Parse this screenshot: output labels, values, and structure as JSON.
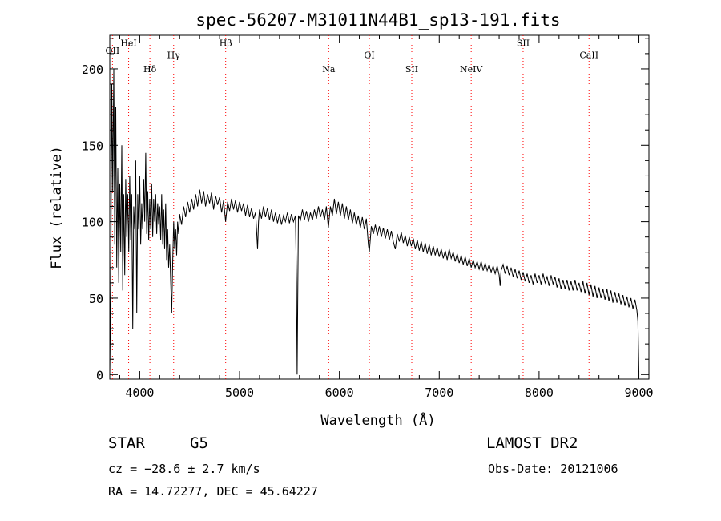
{
  "chart_data": {
    "type": "line",
    "title": "spec-56207-M31011N44B1_sp13-191.fits",
    "xlabel": "Wavelength (Å)",
    "ylabel": "Flux (relative)",
    "xlim": [
      3700,
      9100
    ],
    "ylim": [
      -3,
      222
    ],
    "xticks": [
      4000,
      5000,
      6000,
      7000,
      8000,
      9000
    ],
    "yticks": [
      0,
      50,
      100,
      150,
      200
    ],
    "grid": false,
    "line_color": "#000000",
    "marker_color": "#ff0000",
    "spectral_lines": [
      {
        "label": "OII",
        "x": 3727,
        "y_label": 210
      },
      {
        "label": "HeI",
        "x": 3889,
        "y_label": 215
      },
      {
        "label": "Hδ",
        "x": 4102,
        "y_label": 198
      },
      {
        "label": "Hγ",
        "x": 4340,
        "y_label": 207
      },
      {
        "label": "Hβ",
        "x": 4861,
        "y_label": 215
      },
      {
        "label": "Na",
        "x": 5893,
        "y_label": 198
      },
      {
        "label": "OI",
        "x": 6300,
        "y_label": 207
      },
      {
        "label": "SII",
        "x": 6725,
        "y_label": 198
      },
      {
        "label": "NeIV",
        "x": 7320,
        "y_label": 198
      },
      {
        "label": "SII",
        "x": 7840,
        "y_label": 215
      },
      {
        "label": "CaII",
        "x": 8500,
        "y_label": 207
      }
    ],
    "series": [
      {
        "values": [
          [
            3700,
            0
          ],
          [
            3710,
            55
          ],
          [
            3720,
            190
          ],
          [
            3730,
            120
          ],
          [
            3740,
            200
          ],
          [
            3750,
            85
          ],
          [
            3760,
            175
          ],
          [
            3770,
            70
          ],
          [
            3780,
            135
          ],
          [
            3790,
            60
          ],
          [
            3800,
            125
          ],
          [
            3810,
            80
          ],
          [
            3820,
            150
          ],
          [
            3830,
            55
          ],
          [
            3840,
            118
          ],
          [
            3850,
            65
          ],
          [
            3860,
            128
          ],
          [
            3870,
            90
          ],
          [
            3880,
            118
          ],
          [
            3890,
            80
          ],
          [
            3900,
            130
          ],
          [
            3910,
            88
          ],
          [
            3920,
            118
          ],
          [
            3930,
            30
          ],
          [
            3940,
            110
          ],
          [
            3950,
            95
          ],
          [
            3960,
            140
          ],
          [
            3970,
            40
          ],
          [
            3980,
            118
          ],
          [
            3990,
            95
          ],
          [
            4000,
            130
          ],
          [
            4010,
            85
          ],
          [
            4020,
            112
          ],
          [
            4030,
            95
          ],
          [
            4040,
            128
          ],
          [
            4050,
            100
          ],
          [
            4060,
            145
          ],
          [
            4070,
            92
          ],
          [
            4080,
            120
          ],
          [
            4090,
            88
          ],
          [
            4100,
            115
          ],
          [
            4110,
            95
          ],
          [
            4120,
            125
          ],
          [
            4130,
            90
          ],
          [
            4140,
            115
          ],
          [
            4150,
            100
          ],
          [
            4160,
            118
          ],
          [
            4170,
            92
          ],
          [
            4180,
            112
          ],
          [
            4190,
            98
          ],
          [
            4200,
            110
          ],
          [
            4210,
            88
          ],
          [
            4220,
            118
          ],
          [
            4230,
            85
          ],
          [
            4240,
            108
          ],
          [
            4250,
            82
          ],
          [
            4260,
            112
          ],
          [
            4270,
            75
          ],
          [
            4280,
            95
          ],
          [
            4290,
            70
          ],
          [
            4300,
            85
          ],
          [
            4310,
            62
          ],
          [
            4320,
            40
          ],
          [
            4330,
            72
          ],
          [
            4340,
            100
          ],
          [
            4350,
            82
          ],
          [
            4360,
            95
          ],
          [
            4370,
            78
          ],
          [
            4380,
            100
          ],
          [
            4390,
            92
          ],
          [
            4400,
            105
          ],
          [
            4420,
            98
          ],
          [
            4440,
            110
          ],
          [
            4460,
            103
          ],
          [
            4480,
            113
          ],
          [
            4500,
            106
          ],
          [
            4520,
            115
          ],
          [
            4540,
            108
          ],
          [
            4560,
            118
          ],
          [
            4580,
            110
          ],
          [
            4600,
            121
          ],
          [
            4620,
            112
          ],
          [
            4640,
            120
          ],
          [
            4660,
            110
          ],
          [
            4680,
            118
          ],
          [
            4700,
            112
          ],
          [
            4720,
            119
          ],
          [
            4740,
            108
          ],
          [
            4760,
            117
          ],
          [
            4780,
            111
          ],
          [
            4800,
            116
          ],
          [
            4820,
            106
          ],
          [
            4840,
            114
          ],
          [
            4860,
            100
          ],
          [
            4880,
            113
          ],
          [
            4900,
            107
          ],
          [
            4920,
            115
          ],
          [
            4940,
            108
          ],
          [
            4960,
            114
          ],
          [
            4980,
            106
          ],
          [
            5000,
            113
          ],
          [
            5020,
            107
          ],
          [
            5040,
            112
          ],
          [
            5060,
            104
          ],
          [
            5080,
            111
          ],
          [
            5100,
            103
          ],
          [
            5120,
            109
          ],
          [
            5140,
            102
          ],
          [
            5160,
            106
          ],
          [
            5170,
            95
          ],
          [
            5180,
            82
          ],
          [
            5190,
            100
          ],
          [
            5200,
            108
          ],
          [
            5220,
            102
          ],
          [
            5240,
            110
          ],
          [
            5260,
            103
          ],
          [
            5280,
            109
          ],
          [
            5300,
            101
          ],
          [
            5320,
            108
          ],
          [
            5340,
            100
          ],
          [
            5360,
            106
          ],
          [
            5380,
            99
          ],
          [
            5400,
            105
          ],
          [
            5420,
            98
          ],
          [
            5440,
            104
          ],
          [
            5460,
            100
          ],
          [
            5480,
            106
          ],
          [
            5500,
            99
          ],
          [
            5520,
            105
          ],
          [
            5540,
            100
          ],
          [
            5560,
            104
          ],
          [
            5570,
            60
          ],
          [
            5577,
            0
          ],
          [
            5584,
            60
          ],
          [
            5590,
            104
          ],
          [
            5610,
            101
          ],
          [
            5630,
            108
          ],
          [
            5650,
            101
          ],
          [
            5670,
            107
          ],
          [
            5690,
            100
          ],
          [
            5710,
            106
          ],
          [
            5730,
            101
          ],
          [
            5750,
            108
          ],
          [
            5770,
            102
          ],
          [
            5790,
            110
          ],
          [
            5810,
            103
          ],
          [
            5830,
            108
          ],
          [
            5850,
            101
          ],
          [
            5870,
            110
          ],
          [
            5890,
            96
          ],
          [
            5910,
            110
          ],
          [
            5930,
            104
          ],
          [
            5950,
            115
          ],
          [
            5970,
            105
          ],
          [
            5990,
            113
          ],
          [
            6010,
            104
          ],
          [
            6030,
            112
          ],
          [
            6050,
            102
          ],
          [
            6070,
            110
          ],
          [
            6090,
            101
          ],
          [
            6110,
            108
          ],
          [
            6130,
            99
          ],
          [
            6150,
            106
          ],
          [
            6170,
            98
          ],
          [
            6190,
            104
          ],
          [
            6210,
            96
          ],
          [
            6230,
            103
          ],
          [
            6250,
            95
          ],
          [
            6270,
            102
          ],
          [
            6290,
            85
          ],
          [
            6300,
            80
          ],
          [
            6320,
            97
          ],
          [
            6340,
            92
          ],
          [
            6360,
            98
          ],
          [
            6380,
            91
          ],
          [
            6400,
            97
          ],
          [
            6420,
            90
          ],
          [
            6440,
            96
          ],
          [
            6460,
            89
          ],
          [
            6480,
            95
          ],
          [
            6500,
            88
          ],
          [
            6520,
            94
          ],
          [
            6540,
            87
          ],
          [
            6560,
            82
          ],
          [
            6580,
            92
          ],
          [
            6600,
            87
          ],
          [
            6620,
            93
          ],
          [
            6640,
            86
          ],
          [
            6660,
            91
          ],
          [
            6680,
            84
          ],
          [
            6700,
            90
          ],
          [
            6720,
            84
          ],
          [
            6740,
            89
          ],
          [
            6760,
            82
          ],
          [
            6780,
            88
          ],
          [
            6800,
            81
          ],
          [
            6820,
            87
          ],
          [
            6840,
            80
          ],
          [
            6860,
            86
          ],
          [
            6880,
            79
          ],
          [
            6900,
            85
          ],
          [
            6920,
            78
          ],
          [
            6940,
            84
          ],
          [
            6960,
            78
          ],
          [
            6980,
            83
          ],
          [
            7000,
            77
          ],
          [
            7020,
            82
          ],
          [
            7040,
            76
          ],
          [
            7060,
            81
          ],
          [
            7080,
            75
          ],
          [
            7100,
            82
          ],
          [
            7120,
            76
          ],
          [
            7140,
            80
          ],
          [
            7160,
            74
          ],
          [
            7180,
            79
          ],
          [
            7200,
            73
          ],
          [
            7220,
            78
          ],
          [
            7240,
            72
          ],
          [
            7260,
            77
          ],
          [
            7280,
            71
          ],
          [
            7300,
            76
          ],
          [
            7320,
            70
          ],
          [
            7340,
            75
          ],
          [
            7360,
            70
          ],
          [
            7380,
            74
          ],
          [
            7400,
            69
          ],
          [
            7420,
            74
          ],
          [
            7440,
            68
          ],
          [
            7460,
            73
          ],
          [
            7480,
            68
          ],
          [
            7500,
            72
          ],
          [
            7520,
            67
          ],
          [
            7540,
            71
          ],
          [
            7560,
            66
          ],
          [
            7580,
            71
          ],
          [
            7600,
            65
          ],
          [
            7610,
            58
          ],
          [
            7620,
            68
          ],
          [
            7640,
            72
          ],
          [
            7660,
            66
          ],
          [
            7680,
            71
          ],
          [
            7700,
            65
          ],
          [
            7720,
            70
          ],
          [
            7740,
            64
          ],
          [
            7760,
            69
          ],
          [
            7780,
            63
          ],
          [
            7800,
            68
          ],
          [
            7820,
            62
          ],
          [
            7840,
            67
          ],
          [
            7860,
            61
          ],
          [
            7880,
            66
          ],
          [
            7900,
            60
          ],
          [
            7920,
            65
          ],
          [
            7940,
            59
          ],
          [
            7960,
            66
          ],
          [
            7980,
            60
          ],
          [
            8000,
            65
          ],
          [
            8020,
            59
          ],
          [
            8040,
            66
          ],
          [
            8060,
            60
          ],
          [
            8080,
            64
          ],
          [
            8100,
            58
          ],
          [
            8120,
            65
          ],
          [
            8140,
            59
          ],
          [
            8160,
            64
          ],
          [
            8180,
            57
          ],
          [
            8200,
            63
          ],
          [
            8220,
            56
          ],
          [
            8240,
            62
          ],
          [
            8260,
            56
          ],
          [
            8280,
            62
          ],
          [
            8300,
            55
          ],
          [
            8320,
            61
          ],
          [
            8340,
            55
          ],
          [
            8360,
            62
          ],
          [
            8380,
            55
          ],
          [
            8400,
            60
          ],
          [
            8420,
            54
          ],
          [
            8440,
            61
          ],
          [
            8460,
            53
          ],
          [
            8480,
            60
          ],
          [
            8500,
            52
          ],
          [
            8520,
            59
          ],
          [
            8540,
            51
          ],
          [
            8560,
            58
          ],
          [
            8580,
            50
          ],
          [
            8600,
            57
          ],
          [
            8620,
            50
          ],
          [
            8640,
            56
          ],
          [
            8660,
            49
          ],
          [
            8680,
            56
          ],
          [
            8700,
            48
          ],
          [
            8720,
            55
          ],
          [
            8740,
            47
          ],
          [
            8760,
            54
          ],
          [
            8780,
            47
          ],
          [
            8800,
            53
          ],
          [
            8820,
            46
          ],
          [
            8840,
            52
          ],
          [
            8860,
            45
          ],
          [
            8880,
            51
          ],
          [
            8900,
            44
          ],
          [
            8920,
            50
          ],
          [
            8940,
            43
          ],
          [
            8960,
            49
          ],
          [
            8980,
            42
          ],
          [
            8990,
            35
          ],
          [
            9000,
            2
          ]
        ]
      }
    ]
  },
  "info": {
    "object_class": "STAR",
    "subclass": "G5",
    "survey": "LAMOST DR2",
    "redshift": "cz = −28.6 ± 2.7 km/s",
    "obs_date": "Obs-Date: 20121006",
    "coords": "RA =  14.72277, DEC =  45.64227"
  }
}
